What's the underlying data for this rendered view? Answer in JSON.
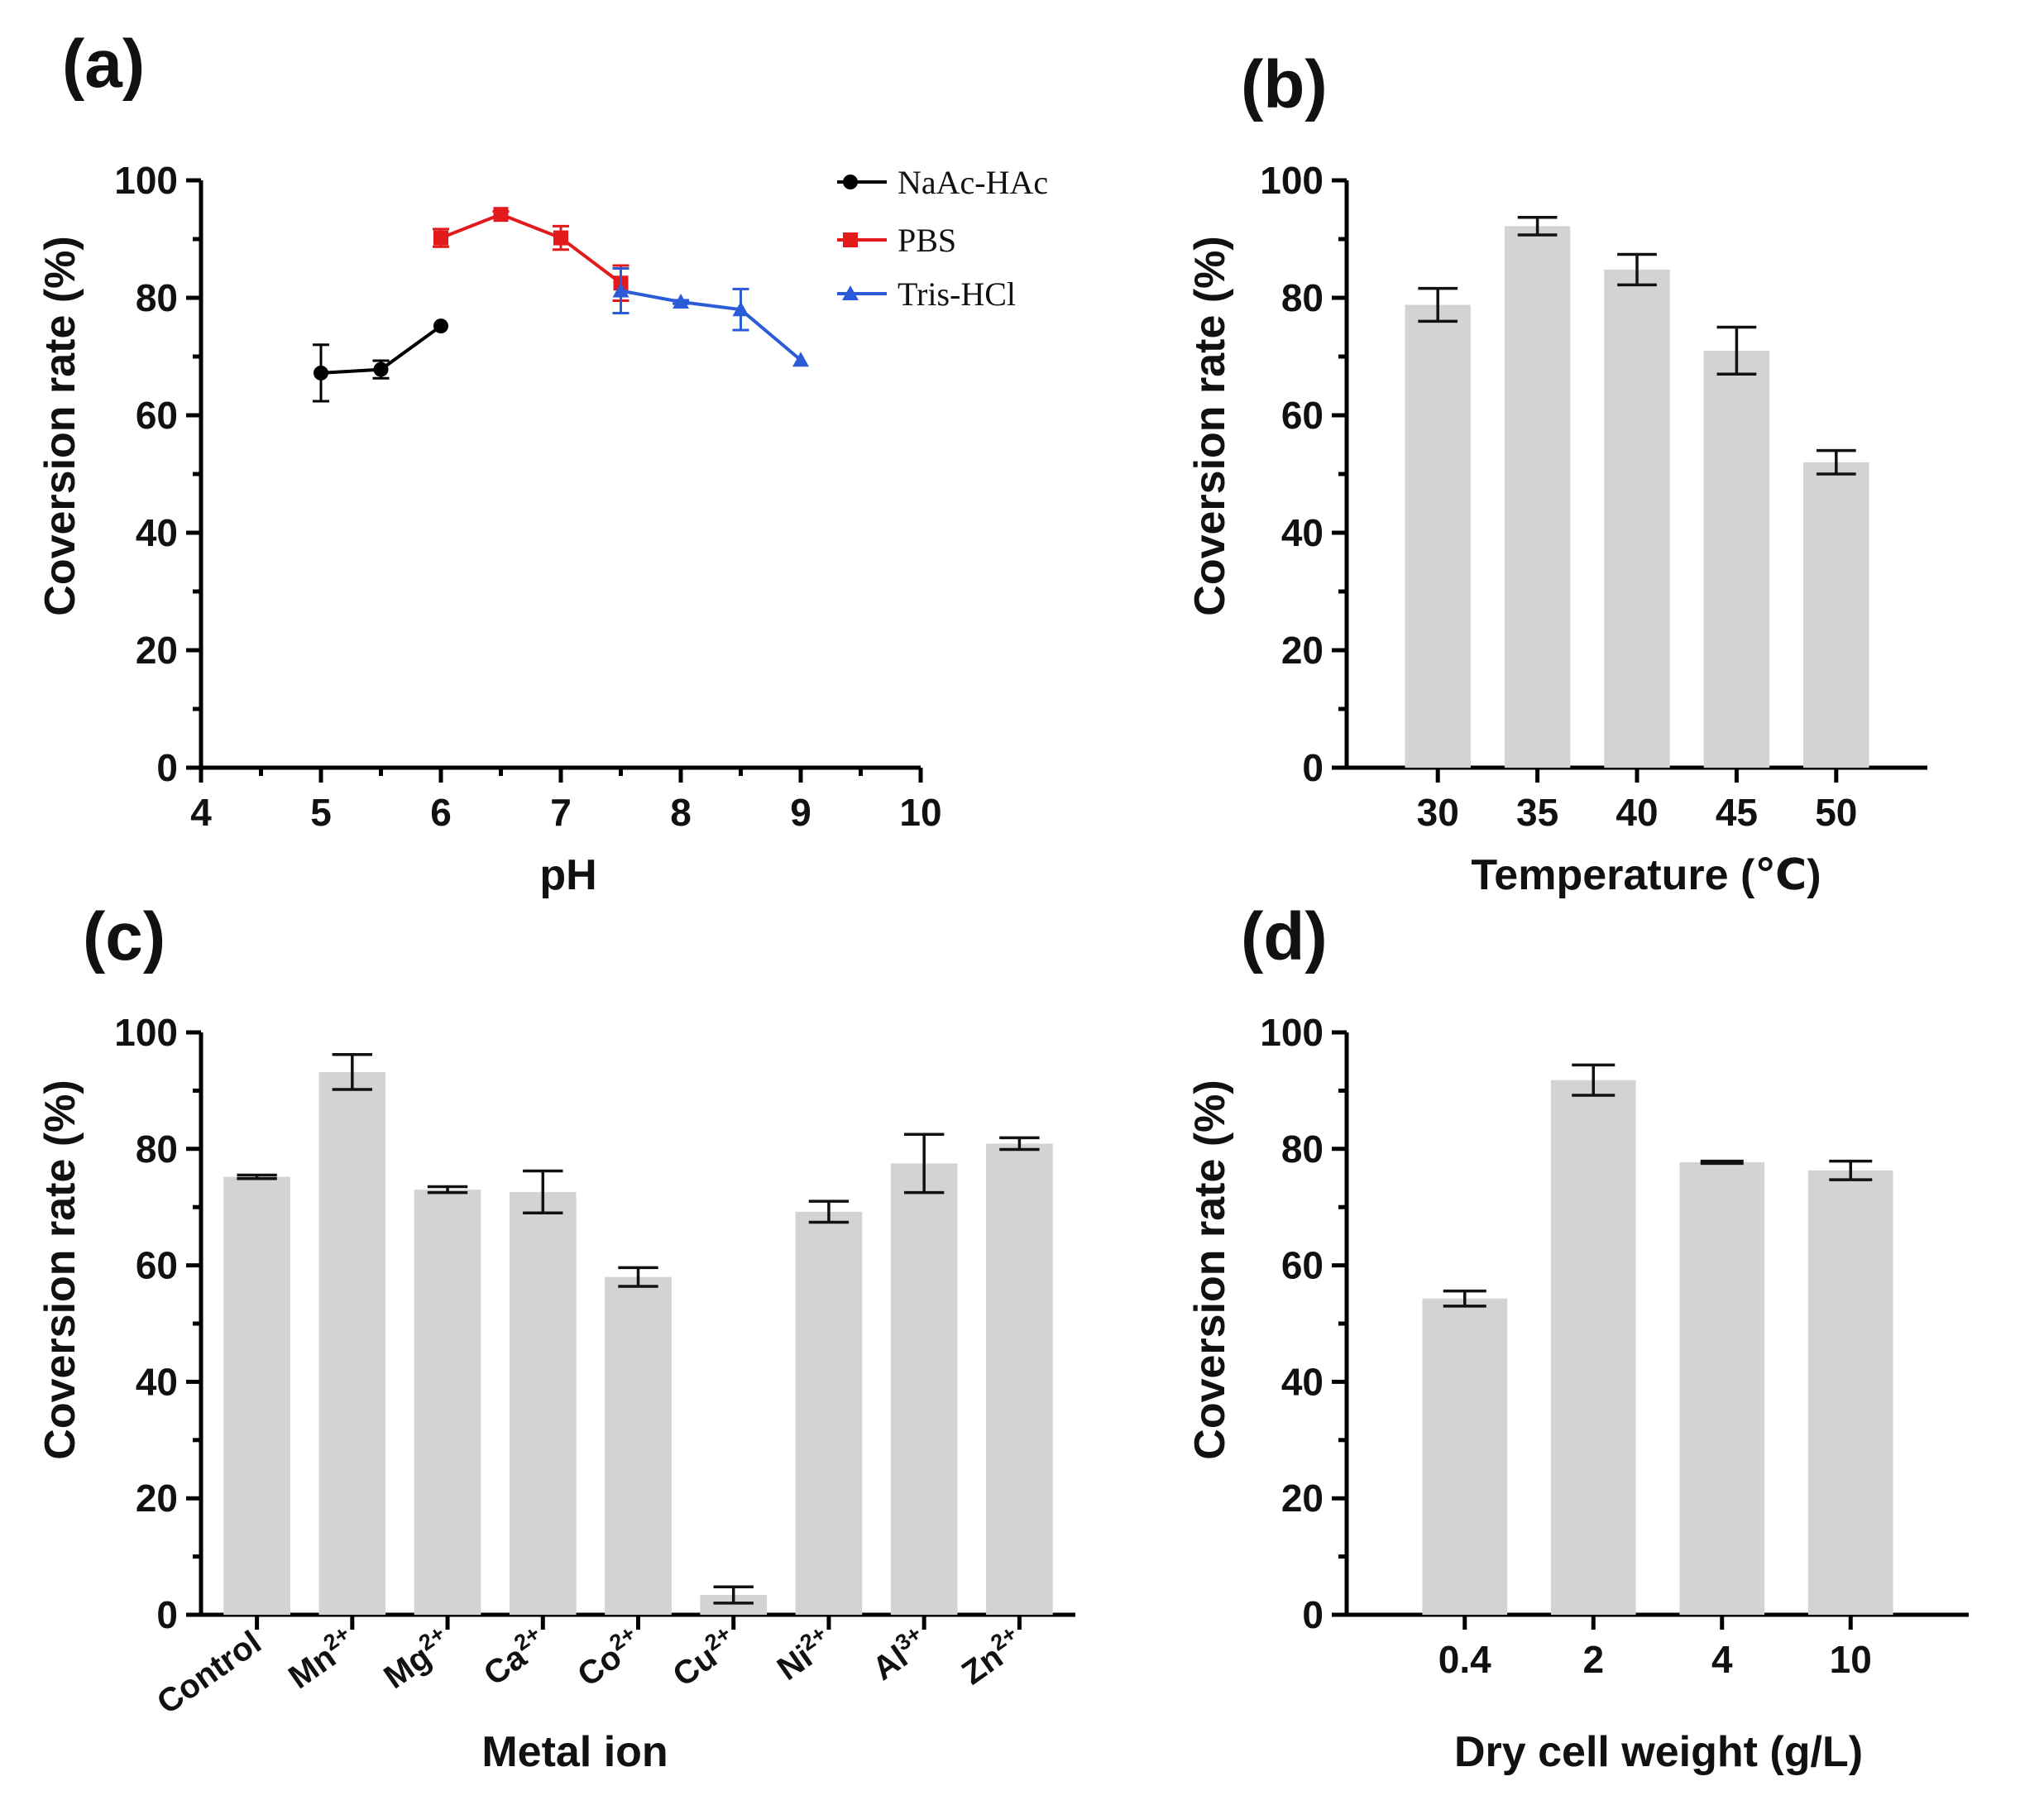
{
  "chart_data": [
    {
      "panel": "(a)",
      "type": "line",
      "title": "",
      "xlabel": "pH",
      "ylabel": "Coversion rate (%)",
      "xlim": [
        4,
        10
      ],
      "ylim": [
        0,
        100
      ],
      "xticks": [
        "4",
        "5",
        "6",
        "7",
        "8",
        "9",
        "10"
      ],
      "yticks": [
        "0",
        "20",
        "40",
        "60",
        "80",
        "100"
      ],
      "legend_position": "top-right",
      "series": [
        {
          "name": "NaAc-HAc",
          "color": "#000000",
          "marker": "circle",
          "x": [
            5,
            5.5,
            6
          ],
          "y": [
            67.2,
            67.8,
            75.2
          ],
          "err": [
            4.8,
            1.5,
            0
          ]
        },
        {
          "name": "PBS",
          "color": "#e31a1c",
          "marker": "square",
          "x": [
            6,
            6.5,
            7,
            7.5
          ],
          "y": [
            90.2,
            94.2,
            90.2,
            82.5
          ],
          "err": [
            1.5,
            0.5,
            2,
            3
          ]
        },
        {
          "name": "Tris-HCl",
          "color": "#2b5bd7",
          "marker": "triangle",
          "x": [
            7.5,
            8,
            8.5,
            9
          ],
          "y": [
            81.2,
            79.3,
            78,
            69.4
          ],
          "err": [
            3.8,
            0.3,
            3.5,
            0
          ]
        }
      ]
    },
    {
      "panel": "(b)",
      "type": "bar",
      "title": "",
      "xlabel": "Temperature (℃)",
      "ylabel": "Coversion rate (%)",
      "ylim": [
        0,
        100
      ],
      "yticks": [
        "0",
        "20",
        "40",
        "60",
        "80",
        "100"
      ],
      "categories": [
        "30",
        "35",
        "40",
        "45",
        "50"
      ],
      "values": [
        78.8,
        92.2,
        84.8,
        71,
        52
      ],
      "errors": [
        2.8,
        1.5,
        2.6,
        4,
        2
      ],
      "bar_color": "#d3d3d3"
    },
    {
      "panel": "(c)",
      "type": "bar",
      "title": "",
      "xlabel": "Metal ion",
      "ylabel": "Coversion rate (%)",
      "ylim": [
        0,
        100
      ],
      "yticks": [
        "0",
        "20",
        "40",
        "60",
        "80",
        "100"
      ],
      "categories": [
        {
          "base": "Control",
          "sup": ""
        },
        {
          "base": "Mn",
          "sup": "2+"
        },
        {
          "base": "Mg",
          "sup": "2+"
        },
        {
          "base": "Ca",
          "sup": "2+"
        },
        {
          "base": "Co",
          "sup": "2+"
        },
        {
          "base": "Cu",
          "sup": "2+"
        },
        {
          "base": "Ni",
          "sup": "2+"
        },
        {
          "base": "Al",
          "sup": "3+"
        },
        {
          "base": "Zn",
          "sup": "2+"
        }
      ],
      "values": [
        75.2,
        93.2,
        73,
        72.6,
        58,
        3.4,
        69.2,
        77.5,
        80.9
      ],
      "errors": [
        0.3,
        3,
        0.5,
        3.6,
        1.6,
        1.4,
        1.8,
        5,
        1
      ],
      "bar_color": "#d3d3d3"
    },
    {
      "panel": "(d)",
      "type": "bar",
      "title": "",
      "xlabel": "Dry cell weight (g/L)",
      "ylabel": "Coversion rate (%)",
      "ylim": [
        0,
        100
      ],
      "yticks": [
        "0",
        "20",
        "40",
        "60",
        "80",
        "100"
      ],
      "categories": [
        "0.4",
        "2",
        "4",
        "10"
      ],
      "values": [
        54.3,
        91.8,
        77.7,
        76.3
      ],
      "errors": [
        1.3,
        2.6,
        0.2,
        1.6
      ],
      "bar_color": "#d3d3d3"
    }
  ]
}
